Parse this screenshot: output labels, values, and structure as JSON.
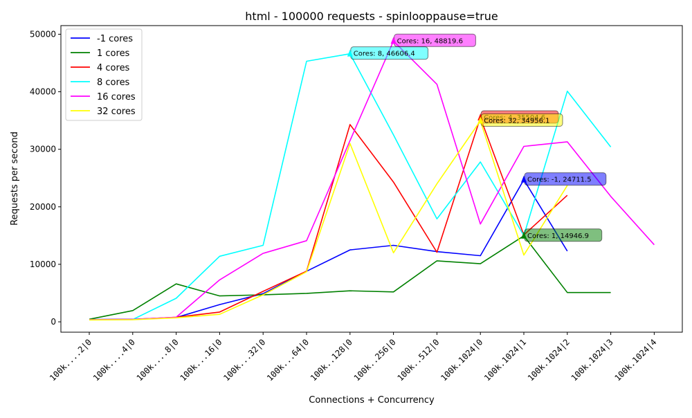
{
  "chart_data": {
    "type": "line",
    "title": "html - 100000 requests - spinlooppause=true",
    "xlabel": "Connections + Concurrency",
    "ylabel": "Requests per second",
    "categories": [
      "100k....2|0",
      "100k....4|0",
      "100k....8|0",
      "100k...16|0",
      "100k...32|0",
      "100k...64|0",
      "100k..128|0",
      "100k..256|0",
      "100k..512|0",
      "100k.1024|0",
      "100k.1024|1",
      "100k.1024|2",
      "100k.1024|3",
      "100k.1024|4"
    ],
    "ylim": [
      -1800,
      51500
    ],
    "yticks": [
      0,
      10000,
      20000,
      30000,
      40000,
      50000
    ],
    "grid": false,
    "legend_position": "top-left",
    "series": [
      {
        "name": "-1 cores",
        "color": "#0000ff",
        "values": [
          400,
          450,
          750,
          3000,
          4900,
          8800,
          12500,
          13300,
          12200,
          11500,
          24711.5,
          12300,
          null,
          null
        ]
      },
      {
        "name": "1 cores",
        "color": "#008000",
        "values": [
          450,
          1950,
          6600,
          4500,
          4700,
          4950,
          5400,
          5200,
          10600,
          10100,
          14946.9,
          5100,
          5100,
          null
        ]
      },
      {
        "name": "4 cores",
        "color": "#ff0000",
        "values": [
          380,
          420,
          800,
          1700,
          5300,
          8800,
          34300,
          24300,
          12100,
          35500,
          15100,
          22000,
          null,
          null
        ]
      },
      {
        "name": "8 cores",
        "color": "#00ffff",
        "values": [
          350,
          400,
          4100,
          11400,
          13300,
          45300,
          46606.4,
          32500,
          17900,
          27800,
          15000,
          40100,
          30400,
          null
        ]
      },
      {
        "name": "16 cores",
        "color": "#ff00ff",
        "values": [
          380,
          420,
          800,
          7300,
          11900,
          14100,
          31500,
          48819.6,
          41300,
          17000,
          30500,
          31300,
          21800,
          13400
        ]
      },
      {
        "name": "32 cores",
        "color": "#ffff00",
        "values": [
          330,
          380,
          700,
          1300,
          4700,
          8700,
          31000,
          12000,
          24000,
          34956.1,
          11600,
          23700,
          null,
          null
        ]
      }
    ],
    "annotations": [
      {
        "text": "Cores: 16, 48819.6",
        "series": 4,
        "index": 7,
        "color": "#ff00ff"
      },
      {
        "text": "Cores: 8, 46606.4",
        "series": 3,
        "index": 6,
        "color": "#00ffff"
      },
      {
        "text": "Cores: 4, 35504.6",
        "series": 2,
        "index": 9,
        "color": "#ff0000"
      },
      {
        "text": "Cores: 32, 34956.1",
        "series": 5,
        "index": 9,
        "color": "#ffff00"
      },
      {
        "text": "Cores: -1, 24711.5",
        "series": 0,
        "index": 10,
        "color": "#0000ff"
      },
      {
        "text": "Cores: 1, 14946.9",
        "series": 1,
        "index": 10,
        "color": "#008000"
      }
    ]
  }
}
